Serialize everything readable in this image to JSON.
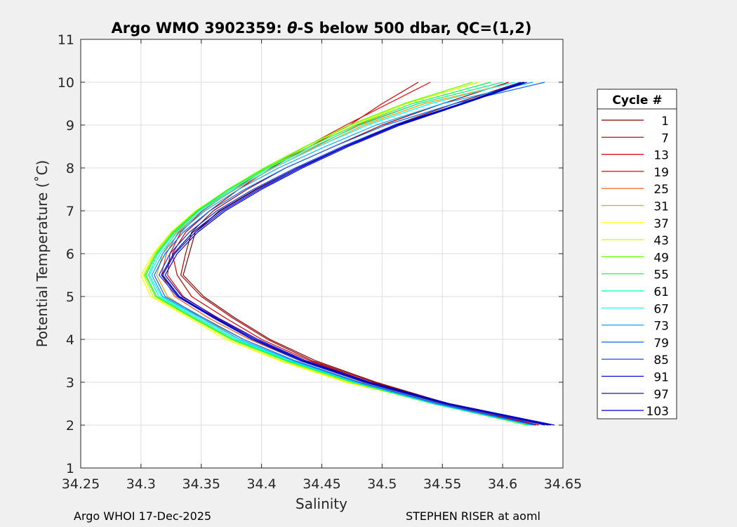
{
  "chart_data": {
    "type": "line",
    "title_prefix": "Argo WMO 3902359: ",
    "title_symbol": "θ",
    "title_suffix": "-S below 500 dbar,  QC=(1,2)",
    "xlabel": "Salinity",
    "ylabel": "Potential Temperature (˚C)",
    "xlim": [
      34.25,
      34.65
    ],
    "ylim": [
      1,
      11
    ],
    "xticks": [
      "34.25",
      "34.3",
      "34.35",
      "34.4",
      "34.45",
      "34.5",
      "34.55",
      "34.6",
      "34.65"
    ],
    "yticks": [
      "1",
      "2",
      "3",
      "4",
      "5",
      "6",
      "7",
      "8",
      "9",
      "10",
      "11"
    ],
    "grid": true,
    "legend_title": "Cycle #",
    "legend_position": "right-outside",
    "curve_theta": [
      2.0,
      2.5,
      3.0,
      3.5,
      4.0,
      4.5,
      5.0,
      5.5,
      6.0,
      6.5,
      7.0,
      7.5,
      8.0,
      8.5,
      9.0,
      9.5,
      10.0
    ],
    "series": [
      {
        "name": "1",
        "color": "#800000",
        "salinity": [
          34.627,
          34.555,
          34.495,
          34.445,
          34.407,
          34.378,
          34.352,
          34.335,
          34.34,
          34.345,
          34.365,
          34.395,
          34.43,
          34.47,
          34.51,
          34.56,
          34.615
        ],
        "theta": [
          2.0,
          2.5,
          3.0,
          3.5,
          4.0,
          4.5,
          5.0,
          5.5,
          6.0,
          6.5,
          7.0,
          7.5,
          8.0,
          8.5,
          9.0,
          9.5,
          10.0
        ]
      },
      {
        "name": "7",
        "color": "#a00000",
        "salinity": [
          34.628,
          34.554,
          34.493,
          34.442,
          34.405,
          34.376,
          34.35,
          34.333,
          34.337,
          34.342,
          34.36,
          34.388,
          34.42,
          34.46,
          34.5,
          34.55,
          34.605
        ]
      },
      {
        "name": "13",
        "color": "#cc0000",
        "salinity": [
          34.63,
          34.553,
          34.49,
          34.44,
          34.4,
          34.37,
          34.342,
          34.33,
          34.326,
          34.337,
          34.357,
          34.381,
          34.408,
          34.44,
          34.473,
          34.5,
          34.53
        ]
      },
      {
        "name": "19",
        "color": "#ee0000",
        "salinity": [
          34.625,
          34.55,
          34.487,
          34.435,
          34.395,
          34.363,
          34.335,
          34.322,
          34.324,
          34.333,
          34.351,
          34.377,
          34.405,
          34.437,
          34.47,
          34.505,
          34.54
        ]
      },
      {
        "name": "25",
        "color": "#ff5500",
        "salinity": [
          34.623,
          34.548,
          34.485,
          34.432,
          34.39,
          34.356,
          34.328,
          34.317,
          34.321,
          34.331,
          34.35,
          34.378,
          34.41,
          34.445,
          34.48,
          34.53,
          34.6
        ]
      },
      {
        "name": "31",
        "color": "#ff9900",
        "salinity": [
          34.622,
          34.547,
          34.482,
          34.428,
          34.385,
          34.35,
          34.322,
          34.313,
          34.318,
          34.329,
          34.348,
          34.377,
          34.41,
          34.447,
          34.485,
          34.535,
          34.61
        ]
      },
      {
        "name": "37",
        "color": "#ffff00",
        "salinity": [
          34.62,
          34.545,
          34.47,
          34.415,
          34.37,
          34.34,
          34.308,
          34.3,
          34.31,
          34.325,
          34.345,
          34.373,
          34.405,
          34.44,
          34.478,
          34.52,
          34.58
        ]
      },
      {
        "name": "43",
        "color": "#ccff00",
        "salinity": [
          34.62,
          34.543,
          34.472,
          34.417,
          34.373,
          34.342,
          34.31,
          34.302,
          34.311,
          34.325,
          34.346,
          34.373,
          34.403,
          34.437,
          34.475,
          34.52,
          34.58
        ]
      },
      {
        "name": "49",
        "color": "#66ff00",
        "salinity": [
          34.621,
          34.542,
          34.475,
          34.42,
          34.375,
          34.343,
          34.312,
          34.303,
          34.312,
          34.326,
          34.346,
          34.372,
          34.402,
          34.436,
          34.473,
          34.518,
          34.575
        ]
      },
      {
        "name": "55",
        "color": "#00ff44",
        "salinity": [
          34.622,
          34.542,
          34.476,
          34.421,
          34.376,
          34.344,
          34.313,
          34.304,
          34.313,
          34.327,
          34.347,
          34.373,
          34.404,
          34.44,
          34.478,
          34.525,
          34.59
        ]
      },
      {
        "name": "61",
        "color": "#00ffaa",
        "salinity": [
          34.623,
          34.543,
          34.477,
          34.423,
          34.378,
          34.346,
          34.315,
          34.306,
          34.314,
          34.328,
          34.348,
          34.375,
          34.406,
          34.443,
          34.482,
          34.53,
          34.6
        ]
      },
      {
        "name": "67",
        "color": "#00ffff",
        "salinity": [
          34.624,
          34.544,
          34.478,
          34.424,
          34.38,
          34.348,
          34.317,
          34.307,
          34.316,
          34.33,
          34.35,
          34.377,
          34.409,
          34.447,
          34.488,
          34.54,
          34.61
        ]
      },
      {
        "name": "73",
        "color": "#00aaff",
        "salinity": [
          34.625,
          34.545,
          34.479,
          34.426,
          34.382,
          34.35,
          34.318,
          34.309,
          34.318,
          34.332,
          34.353,
          34.381,
          34.414,
          34.453,
          34.495,
          34.55,
          34.625
        ]
      },
      {
        "name": "79",
        "color": "#0066ff",
        "salinity": [
          34.627,
          34.546,
          34.481,
          34.428,
          34.385,
          34.352,
          34.32,
          34.311,
          34.32,
          34.335,
          34.357,
          34.386,
          34.42,
          34.46,
          34.503,
          34.56,
          34.635
        ]
      },
      {
        "name": "85",
        "color": "#0033ff",
        "salinity": [
          34.635,
          34.55,
          34.485,
          34.432,
          34.392,
          34.36,
          34.33,
          34.315,
          34.324,
          34.34,
          34.363,
          34.393,
          34.428,
          34.467,
          34.51,
          34.565,
          34.615
        ]
      },
      {
        "name": "91",
        "color": "#0000ee",
        "salinity": [
          34.64,
          34.555,
          34.488,
          34.435,
          34.395,
          34.362,
          34.332,
          34.318,
          34.328,
          34.345,
          34.368,
          34.398,
          34.432,
          34.47,
          34.513,
          34.567,
          34.618
        ]
      },
      {
        "name": "97",
        "color": "#000099",
        "salinity": [
          34.638,
          34.553,
          34.487,
          34.434,
          34.393,
          34.361,
          34.331,
          34.317,
          34.327,
          34.343,
          34.366,
          34.396,
          34.43,
          34.469,
          34.512,
          34.566,
          34.617
        ]
      },
      {
        "name": "103",
        "color": "#0000cc",
        "salinity": [
          34.643,
          34.556,
          34.49,
          34.437,
          34.397,
          34.364,
          34.334,
          34.32,
          34.33,
          34.347,
          34.37,
          34.4,
          34.434,
          34.472,
          34.515,
          34.568,
          34.62
        ]
      }
    ]
  },
  "footer": {
    "left": "Argo WHOI 17-Dec-2025",
    "right": "STEPHEN RISER at aoml"
  }
}
